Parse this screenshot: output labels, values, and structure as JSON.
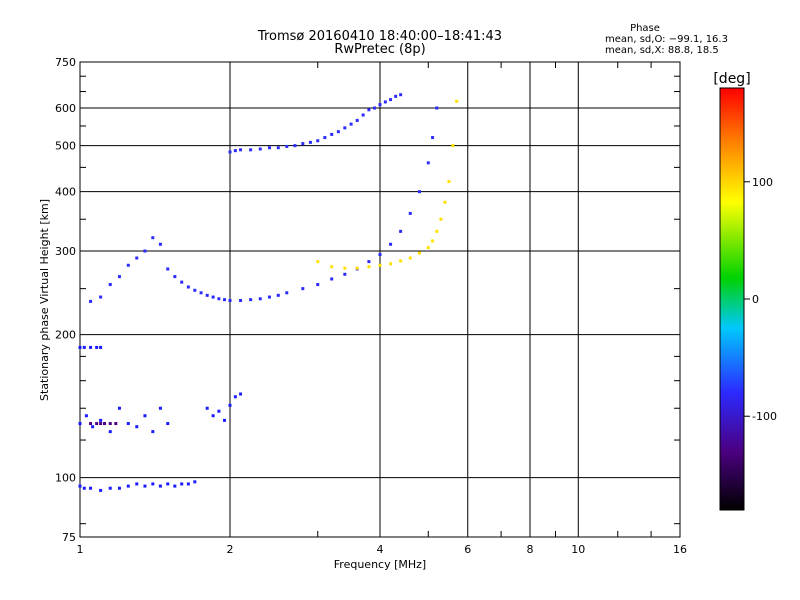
{
  "header": {
    "title_line1": "Tromsø 20160410 18:40:00–18:41:43",
    "title_line2": "RwPretec (8p)"
  },
  "phase_box": {
    "title": "Phase",
    "line_o": "mean, sd,O: −99.1, 16.3",
    "line_x": "mean, sd,X:  88.8, 18.5"
  },
  "chart_data": {
    "type": "scatter",
    "title": "Tromsø 20160410 18:40:00–18:41:43",
    "subtitle": "RwPretec (8p)",
    "xlabel": "Frequency [MHz]",
    "ylabel": "Stationary phase Virtual Height [km]",
    "x_scale": "log",
    "y_scale": "log",
    "xlim": [
      1,
      16
    ],
    "ylim": [
      75,
      750
    ],
    "x_ticks": [
      1,
      2,
      4,
      6,
      8,
      10,
      16
    ],
    "y_ticks": [
      75,
      100,
      200,
      300,
      400,
      500,
      600,
      750
    ],
    "grid": true,
    "colorbar": {
      "label": "[deg]",
      "ticks": [
        100,
        0,
        -100
      ],
      "range": [
        -180,
        180
      ],
      "colors": [
        "#000000",
        "#4b0082",
        "#2b2bff",
        "#00c8ff",
        "#00d200",
        "#ffff00",
        "#ff8c00",
        "#ff0000"
      ]
    },
    "series": [
      {
        "color": "#1a1aff",
        "x": [
          1.0,
          1.02,
          1.05,
          1.1,
          1.15,
          1.2,
          1.25,
          1.3,
          1.35,
          1.4,
          1.45,
          1.5,
          1.55,
          1.6,
          1.65,
          1.7
        ],
        "y": [
          96,
          95,
          95,
          94,
          95,
          95,
          96,
          97,
          96,
          97,
          96,
          97,
          96,
          97,
          97,
          98
        ]
      },
      {
        "color": "#1a1aff",
        "x": [
          1.0,
          1.03,
          1.06,
          1.1,
          1.15,
          1.2,
          1.25,
          1.3,
          1.35,
          1.4,
          1.45,
          1.5
        ],
        "y": [
          130,
          135,
          128,
          132,
          125,
          140,
          130,
          128,
          135,
          125,
          140,
          130
        ]
      },
      {
        "color": "#4b0082",
        "x": [
          1.05,
          1.08,
          1.1,
          1.12,
          1.15,
          1.18
        ],
        "y": [
          130,
          130,
          130,
          130,
          130,
          130
        ]
      },
      {
        "color": "#1a1aff",
        "x": [
          1.0,
          1.02,
          1.05,
          1.08,
          1.1
        ],
        "y": [
          188,
          188,
          188,
          188,
          188
        ]
      },
      {
        "color": "#1a1aff",
        "x": [
          1.8,
          1.85,
          1.9,
          1.95,
          2.0,
          2.05,
          2.1
        ],
        "y": [
          140,
          135,
          138,
          132,
          142,
          148,
          150
        ]
      },
      {
        "color": "#2b2bff",
        "x": [
          2.0,
          2.05,
          2.1,
          2.2,
          2.3,
          2.4,
          2.5,
          2.6,
          2.7,
          2.8,
          2.9,
          3.0,
          3.1,
          3.2,
          3.3,
          3.4,
          3.5,
          3.6,
          3.7,
          3.8,
          3.9,
          4.0,
          4.1,
          4.2,
          4.3,
          4.4
        ],
        "y": [
          485,
          488,
          490,
          490,
          492,
          495,
          495,
          498,
          500,
          505,
          508,
          512,
          520,
          528,
          535,
          545,
          555,
          565,
          580,
          595,
          600,
          610,
          618,
          625,
          635,
          640
        ]
      },
      {
        "color": "#2b2bff",
        "x": [
          1.05,
          1.1,
          1.15,
          1.2,
          1.25,
          1.3,
          1.35,
          1.4,
          1.45,
          1.5,
          1.55,
          1.6,
          1.65,
          1.7,
          1.75,
          1.8,
          1.85,
          1.9,
          1.95,
          2.0,
          2.1,
          2.2,
          2.3,
          2.4,
          2.5,
          2.6,
          2.8,
          3.0,
          3.2,
          3.4,
          3.6,
          3.8,
          4.0,
          4.2,
          4.4,
          4.6,
          4.8,
          5.0,
          5.1,
          5.2
        ],
        "y": [
          235,
          240,
          255,
          265,
          280,
          290,
          300,
          320,
          310,
          275,
          265,
          258,
          252,
          248,
          245,
          242,
          240,
          238,
          237,
          236,
          236,
          237,
          238,
          240,
          242,
          245,
          250,
          255,
          262,
          268,
          275,
          285,
          295,
          310,
          330,
          360,
          400,
          460,
          520,
          600
        ]
      },
      {
        "color": "#ffe100",
        "x": [
          3.0,
          3.2,
          3.4,
          3.6,
          3.8,
          4.0,
          4.2,
          4.4,
          4.6,
          4.8,
          5.0,
          5.1,
          5.2,
          5.3,
          5.4,
          5.5,
          5.6,
          5.7
        ],
        "y": [
          285,
          278,
          276,
          276,
          278,
          280,
          282,
          286,
          290,
          297,
          305,
          315,
          330,
          350,
          380,
          420,
          500,
          620
        ]
      }
    ]
  }
}
